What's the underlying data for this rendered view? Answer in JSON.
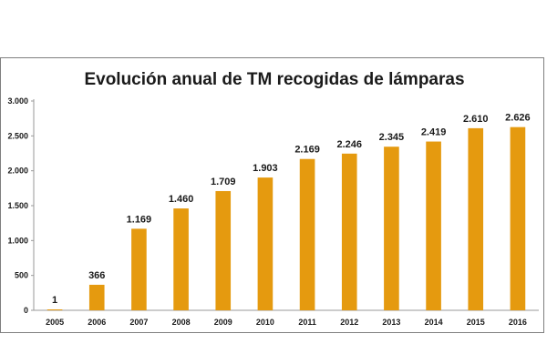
{
  "colors": {
    "bar": "#E59A0F",
    "axis": "#9a9a9a",
    "frame": "#7f7f7f"
  },
  "chart_data": {
    "type": "bar",
    "title": "Evolución anual de TM recogidas de lámparas",
    "xlabel": "",
    "ylabel": "",
    "ylim": [
      0,
      3000
    ],
    "yticks": [
      0,
      500,
      1000,
      1500,
      2000,
      2500,
      3000
    ],
    "ytick_labels": [
      "0",
      "500",
      "1.000",
      "1.500",
      "2.000",
      "2.500",
      "3.000"
    ],
    "grid": false,
    "legend": "none",
    "categories": [
      "2005",
      "2006",
      "2007",
      "2008",
      "2009",
      "2010",
      "2011",
      "2012",
      "2013",
      "2014",
      "2015",
      "2016"
    ],
    "values": [
      1,
      366,
      1169,
      1460,
      1709,
      1903,
      2169,
      2246,
      2345,
      2419,
      2610,
      2626
    ],
    "value_labels": [
      "1",
      "366",
      "1.169",
      "1.460",
      "1.709",
      "1.903",
      "2.169",
      "2.246",
      "2.345",
      "2.419",
      "2.610",
      "2.626"
    ]
  }
}
